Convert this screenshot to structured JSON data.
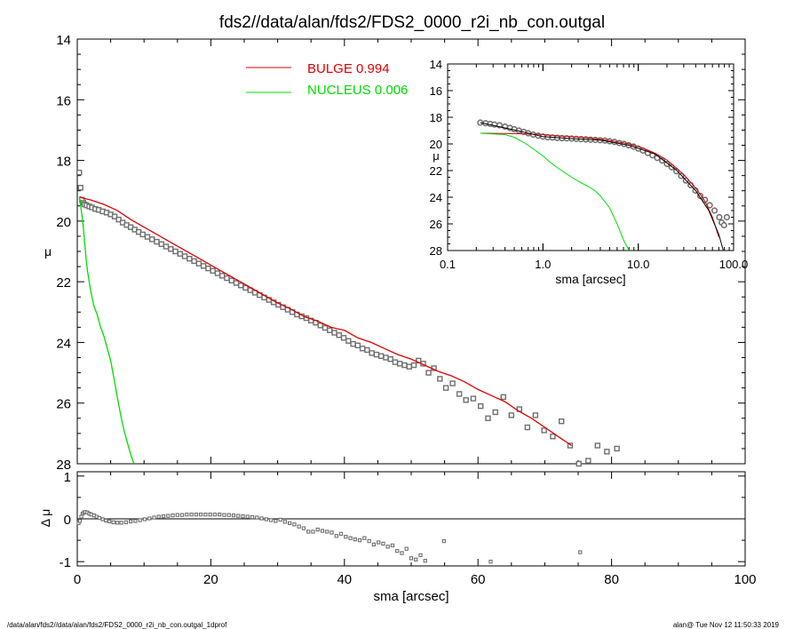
{
  "figure": {
    "title": "fds2//data/alan/fds2/FDS2_0000_r2i_nb_con.outgal",
    "footer_left": "/data/alan/fds2//data/alan/fds2/FDS2_0000_r2i_nb_con.outgal_1dprof",
    "footer_right": "alan@  Tue Nov 12 11:50:33 2019"
  },
  "colors": {
    "bulge": "#e00000",
    "nucleus": "#00dd00",
    "data": "#707070",
    "axis": "#000000"
  },
  "legend": {
    "position": "top-center",
    "entries": [
      {
        "label": "BULGE  0.994",
        "color": "#e00000"
      },
      {
        "label": "NUCLEUS  0.006",
        "color": "#00dd00"
      }
    ]
  },
  "chart_data": [
    {
      "id": "main-profile",
      "type": "scatter",
      "title": "fds2//data/alan/fds2/FDS2_0000_r2i_nb_con.outgal",
      "xlabel": "",
      "ylabel": "μ",
      "xlim": [
        0,
        100
      ],
      "ylim": [
        28,
        14
      ],
      "y_inverted": true,
      "yticks": [
        "14",
        "16",
        "18",
        "20",
        "22",
        "24",
        "26",
        "28"
      ],
      "series": [
        {
          "name": "data",
          "kind": "points",
          "color": "#707070",
          "x": [
            0.3,
            0.5,
            0.7,
            0.9,
            1.1,
            1.4,
            1.8,
            2.2,
            2.7,
            3.2,
            3.8,
            4.4,
            5.0,
            5.6,
            6.2,
            6.8,
            7.4,
            8.0,
            8.6,
            9.2,
            9.8,
            10.5,
            11.2,
            11.9,
            12.6,
            13.3,
            14.0,
            14.7,
            15.4,
            16.1,
            16.8,
            17.5,
            18.2,
            18.9,
            19.6,
            20.3,
            21.0,
            21.7,
            22.4,
            23.1,
            23.8,
            24.5,
            25.2,
            25.9,
            26.6,
            27.3,
            28.0,
            28.7,
            29.4,
            30.1,
            30.8,
            31.5,
            32.2,
            32.9,
            33.6,
            34.3,
            35.0,
            35.7,
            36.4,
            37.1,
            37.8,
            38.5,
            39.2,
            39.9,
            40.6,
            41.3,
            42.0,
            42.7,
            43.4,
            44.1,
            44.8,
            45.5,
            46.2,
            46.9,
            47.6,
            48.3,
            49.0,
            49.7,
            50.4,
            51.1,
            51.8,
            52.6,
            53.4,
            54.3,
            55.2,
            56.2,
            57.2,
            58.2,
            59.3,
            60.4,
            61.5,
            62.6,
            63.8,
            65.0,
            66.2,
            67.4,
            68.6,
            69.9,
            71.2,
            72.5,
            73.8,
            75.1,
            76.5,
            77.9,
            79.3,
            80.8
          ],
          "y": [
            18.4,
            18.9,
            19.3,
            19.4,
            19.45,
            19.48,
            19.52,
            19.55,
            19.6,
            19.63,
            19.68,
            19.72,
            19.78,
            19.85,
            19.95,
            20.05,
            20.13,
            20.2,
            20.28,
            20.36,
            20.44,
            20.52,
            20.6,
            20.68,
            20.76,
            20.84,
            20.92,
            21.0,
            21.08,
            21.16,
            21.24,
            21.32,
            21.4,
            21.48,
            21.56,
            21.64,
            21.72,
            21.8,
            21.88,
            21.96,
            22.04,
            22.12,
            22.2,
            22.28,
            22.36,
            22.44,
            22.52,
            22.6,
            22.68,
            22.76,
            22.84,
            22.92,
            23.0,
            23.08,
            23.14,
            23.2,
            23.28,
            23.35,
            23.44,
            23.52,
            23.6,
            23.68,
            23.76,
            23.85,
            23.95,
            24.05,
            24.1,
            24.2,
            24.25,
            24.35,
            24.4,
            24.45,
            24.5,
            24.55,
            24.65,
            24.7,
            24.75,
            24.8,
            24.75,
            24.6,
            24.7,
            25.0,
            24.85,
            25.2,
            25.5,
            25.35,
            25.7,
            25.9,
            25.85,
            26.1,
            26.5,
            26.3,
            25.8,
            26.4,
            26.2,
            26.8,
            26.4,
            26.9,
            27.1,
            26.6,
            27.4,
            28.0,
            27.9,
            27.4,
            27.6,
            27.5
          ]
        },
        {
          "name": "BULGE  0.994",
          "kind": "line",
          "color": "#e00000",
          "x": [
            0.3,
            1,
            2,
            4,
            6,
            8,
            10,
            12,
            14,
            16,
            18,
            20,
            22,
            24,
            26,
            28,
            30,
            32,
            34,
            36,
            38,
            40,
            42,
            44,
            46,
            48,
            50,
            52,
            54,
            56,
            58,
            60,
            62,
            64,
            66,
            68,
            70,
            72,
            74
          ],
          "y": [
            19.2,
            19.25,
            19.3,
            19.45,
            19.65,
            19.95,
            20.2,
            20.45,
            20.7,
            20.95,
            21.2,
            21.45,
            21.7,
            21.95,
            22.2,
            22.45,
            22.7,
            22.9,
            23.15,
            23.3,
            23.5,
            23.6,
            23.85,
            24.0,
            24.2,
            24.4,
            24.55,
            24.75,
            24.95,
            25.1,
            25.3,
            25.55,
            25.75,
            25.95,
            26.25,
            26.5,
            26.8,
            27.1,
            27.4
          ]
        },
        {
          "name": "NUCLEUS  0.006",
          "kind": "line",
          "color": "#00dd00",
          "x": [
            0.3,
            0.5,
            0.7,
            0.9,
            1.1,
            1.3,
            1.5,
            1.8,
            2.1,
            2.5,
            3.0,
            3.5,
            4.0,
            4.5,
            5.0,
            5.5,
            6.0,
            6.5,
            7.0,
            7.5,
            8.0,
            8.5
          ],
          "y": [
            19.2,
            19.5,
            19.8,
            20.2,
            20.7,
            21.2,
            21.6,
            22.0,
            22.4,
            22.8,
            23.1,
            23.5,
            23.8,
            24.2,
            24.6,
            25.2,
            25.8,
            26.4,
            26.9,
            27.3,
            27.7,
            28.0
          ]
        }
      ]
    },
    {
      "id": "residual",
      "type": "scatter",
      "xlabel": "sma [arcsec]",
      "ylabel": "Δ μ",
      "xlim": [
        0,
        100
      ],
      "ylim": [
        -1.1,
        1.1
      ],
      "xticks": [
        "0",
        "20",
        "40",
        "60",
        "80",
        "100"
      ],
      "yticks": [
        "1",
        "0",
        "-1"
      ],
      "series": [
        {
          "name": "residual",
          "kind": "points",
          "color": "#707070",
          "x": [
            0.2,
            0.4,
            0.6,
            0.8,
            1.0,
            1.2,
            1.5,
            1.8,
            2.1,
            2.5,
            2.9,
            3.3,
            3.8,
            4.3,
            4.8,
            5.4,
            6.0,
            6.6,
            7.3,
            8.0,
            8.7,
            9.4,
            10.1,
            10.8,
            11.5,
            12.2,
            12.9,
            13.6,
            14.3,
            15.0,
            15.7,
            16.4,
            17.1,
            17.8,
            18.5,
            19.2,
            19.9,
            20.6,
            21.3,
            22.0,
            22.7,
            23.4,
            24.1,
            24.8,
            25.5,
            26.2,
            26.9,
            27.6,
            28.3,
            29.0,
            29.7,
            30.4,
            31.1,
            31.8,
            32.5,
            33.2,
            33.9,
            34.6,
            35.3,
            36.0,
            36.7,
            37.4,
            38.1,
            38.8,
            39.5,
            40.2,
            40.9,
            41.6,
            42.3,
            43.0,
            43.7,
            44.4,
            45.1,
            45.8,
            46.5,
            47.2,
            47.9,
            48.6,
            49.3,
            50.0,
            50.7,
            51.4,
            52.1,
            54.9,
            61.9,
            75.3
          ],
          "y": [
            -0.1,
            -0.05,
            0.05,
            0.12,
            0.15,
            0.16,
            0.15,
            0.12,
            0.1,
            0.08,
            0.05,
            0.02,
            -0.01,
            -0.04,
            -0.06,
            -0.08,
            -0.09,
            -0.09,
            -0.08,
            -0.06,
            -0.05,
            -0.03,
            -0.01,
            0.01,
            0.03,
            0.05,
            0.06,
            0.07,
            0.08,
            0.09,
            0.09,
            0.1,
            0.1,
            0.1,
            0.1,
            0.1,
            0.1,
            0.1,
            0.1,
            0.09,
            0.09,
            0.08,
            0.07,
            0.06,
            0.05,
            0.04,
            0.03,
            0.01,
            -0.01,
            -0.03,
            -0.05,
            -0.02,
            -0.07,
            -0.1,
            -0.13,
            -0.18,
            -0.22,
            -0.3,
            -0.3,
            -0.25,
            -0.28,
            -0.3,
            -0.32,
            -0.4,
            -0.35,
            -0.42,
            -0.45,
            -0.48,
            -0.5,
            -0.45,
            -0.52,
            -0.6,
            -0.55,
            -0.58,
            -0.65,
            -0.62,
            -0.75,
            -0.8,
            -0.7,
            -0.92,
            -0.95,
            -0.85,
            -0.98,
            -0.52,
            -1.0,
            -0.78
          ]
        }
      ]
    },
    {
      "id": "inset-profile",
      "type": "scatter",
      "xlabel": "sma [arcsec]",
      "ylabel": "μ",
      "x_scale": "log",
      "xlim": [
        0.1,
        100
      ],
      "ylim": [
        28,
        14
      ],
      "y_inverted": true,
      "xticks": [
        "0.1",
        "1.0",
        "10.0",
        "100.0"
      ],
      "yticks": [
        "14",
        "16",
        "18",
        "20",
        "22",
        "24",
        "26",
        "28"
      ],
      "series": [
        {
          "name": "data",
          "kind": "points",
          "color": "#707070",
          "x": [
            0.22,
            0.25,
            0.28,
            0.31,
            0.35,
            0.4,
            0.45,
            0.5,
            0.56,
            0.63,
            0.7,
            0.79,
            0.89,
            1.0,
            1.12,
            1.26,
            1.41,
            1.58,
            1.78,
            2.0,
            2.24,
            2.51,
            2.82,
            3.16,
            3.55,
            3.98,
            4.47,
            5.01,
            5.62,
            6.31,
            7.08,
            7.94,
            8.91,
            10.0,
            11.2,
            12.6,
            14.1,
            15.8,
            17.8,
            20.0,
            22.4,
            25.1,
            28.2,
            31.6,
            35.5,
            39.8,
            44.7,
            50.1,
            56.2,
            63.1,
            70.8,
            75.0,
            79.4,
            85.0
          ],
          "y": [
            18.4,
            18.45,
            18.5,
            18.55,
            18.6,
            18.7,
            18.8,
            18.9,
            19.0,
            19.1,
            19.2,
            19.3,
            19.38,
            19.45,
            19.5,
            19.52,
            19.55,
            19.57,
            19.58,
            19.6,
            19.62,
            19.64,
            19.66,
            19.68,
            19.7,
            19.72,
            19.75,
            19.8,
            19.85,
            19.93,
            20.0,
            20.1,
            20.2,
            20.35,
            20.5,
            20.68,
            20.85,
            21.05,
            21.25,
            21.5,
            21.75,
            22.05,
            22.4,
            22.75,
            23.1,
            23.5,
            23.9,
            24.2,
            24.6,
            25.0,
            25.5,
            25.9,
            26.1,
            25.5
          ]
        },
        {
          "name": "BULGE  0.994",
          "kind": "line",
          "color": "#e00000",
          "x": [
            0.22,
            0.4,
            0.7,
            1.0,
            1.5,
            2,
            3,
            4,
            5,
            6,
            8,
            10,
            12,
            15,
            20,
            25,
            30,
            40,
            50,
            60,
            70
          ],
          "y": [
            19.2,
            19.22,
            19.25,
            19.3,
            19.4,
            19.45,
            19.55,
            19.65,
            19.75,
            19.85,
            20.0,
            20.2,
            20.4,
            20.7,
            21.2,
            21.8,
            22.3,
            23.3,
            24.3,
            25.5,
            27.0
          ]
        },
        {
          "name": "NUCLEUS  0.006",
          "kind": "line",
          "color": "#00dd00",
          "x": [
            0.22,
            0.3,
            0.4,
            0.5,
            0.6,
            0.7,
            0.8,
            1.0,
            1.2,
            1.5,
            2.0,
            2.5,
            3.0,
            3.5,
            4.0,
            5.0,
            6.0,
            7.0,
            8.0
          ],
          "y": [
            19.2,
            19.25,
            19.3,
            19.5,
            19.8,
            20.1,
            20.4,
            20.9,
            21.4,
            21.9,
            22.5,
            22.9,
            23.2,
            23.5,
            23.9,
            24.8,
            26.0,
            27.2,
            28.0
          ]
        },
        {
          "name": "model",
          "kind": "line",
          "color": "#000000",
          "x": [
            0.22,
            0.5,
            1,
            2,
            4,
            8,
            15,
            25,
            40,
            55,
            70,
            78
          ],
          "y": [
            18.4,
            18.95,
            19.45,
            19.6,
            19.72,
            20.1,
            20.75,
            21.95,
            23.5,
            25.0,
            26.8,
            28.0
          ]
        }
      ]
    }
  ]
}
